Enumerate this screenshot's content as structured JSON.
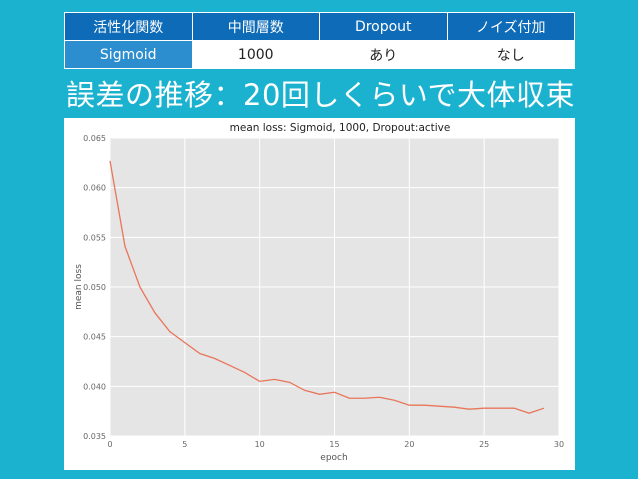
{
  "settings": {
    "headers": [
      "活性化関数",
      "中間層数",
      "Dropout",
      "ノイズ付加"
    ],
    "values": [
      "Sigmoid",
      "1000",
      "あり",
      "なし"
    ]
  },
  "heading": "誤差の推移：20回しくらいで大体収束",
  "colors": {
    "background": "#1ab2cf",
    "header_cell": "#0d6bb8",
    "highlight_cell": "#2c8ecf",
    "line": "#e8765a",
    "plot_background": "#e5e5e5"
  },
  "chart_data": {
    "type": "line",
    "title": "mean loss: Sigmoid, 1000, Dropout:active",
    "xlabel": "epoch",
    "ylabel": "mean loss",
    "xlim": [
      0,
      30
    ],
    "ylim": [
      0.035,
      0.065
    ],
    "x_ticks": [
      "0",
      "5",
      "10",
      "15",
      "20",
      "25",
      "30"
    ],
    "y_ticks": [
      "0.035",
      "0.040",
      "0.045",
      "0.050",
      "0.055",
      "0.060",
      "0.065"
    ],
    "grid": true,
    "series": [
      {
        "x": [
          0,
          1,
          2,
          3,
          4,
          5,
          6,
          7,
          8,
          9,
          10,
          11,
          12,
          13,
          14,
          15,
          16,
          17,
          18,
          19,
          20,
          21,
          22,
          23,
          24,
          25,
          26,
          27,
          28,
          29
        ],
        "values": [
          0.0627,
          0.0541,
          0.05,
          0.0474,
          0.0455,
          0.0444,
          0.0433,
          0.0428,
          0.0421,
          0.0414,
          0.0405,
          0.0407,
          0.0404,
          0.0396,
          0.0392,
          0.0394,
          0.0388,
          0.0388,
          0.0389,
          0.0386,
          0.0381,
          0.0381,
          0.038,
          0.0379,
          0.0377,
          0.0378,
          0.0378,
          0.0378,
          0.0373,
          0.0378
        ]
      }
    ]
  }
}
